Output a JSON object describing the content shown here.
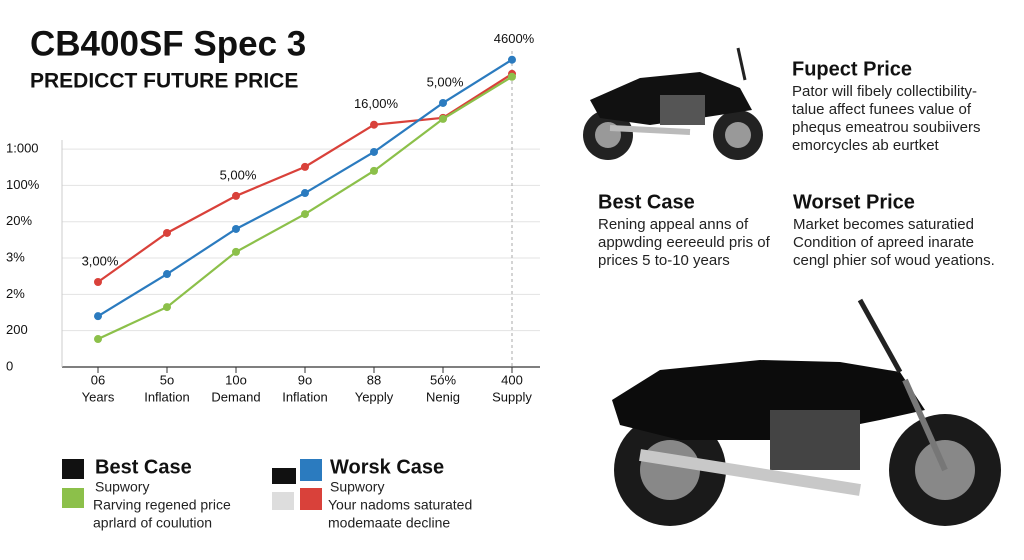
{
  "chart_data": {
    "type": "line",
    "title": "CB400SF Spec 3",
    "subtitle": "PREDICCT FUTURE PRICE",
    "categories": [
      [
        "06",
        "Years"
      ],
      [
        "5o",
        "Inflation"
      ],
      [
        "10o",
        "Demand"
      ],
      [
        "9o",
        "Inflation"
      ],
      [
        "88",
        "Yepply"
      ],
      [
        "5ó%",
        "Nenig"
      ],
      [
        "400",
        "Supply"
      ]
    ],
    "series": [
      {
        "color": "#d9413a",
        "values": [
          2.34,
          3.69,
          4.71,
          5.51,
          6.67,
          6.86,
          8.07
        ]
      },
      {
        "color": "#2b7bbf",
        "values": [
          1.4,
          2.56,
          3.8,
          4.79,
          5.92,
          7.27,
          8.46
        ]
      },
      {
        "color": "#8cc04a",
        "values": [
          0.77,
          1.65,
          3.17,
          4.21,
          5.4,
          6.83,
          7.99
        ]
      }
    ],
    "annotations": [
      "3,00%",
      "5,00%",
      "16,00%",
      "5,00%",
      "4600%"
    ],
    "ylim": [
      0,
      8.7
    ],
    "yticks": [
      0,
      {
        "value": 1,
        "label": "200"
      },
      {
        "value": 2,
        "label": "2%"
      },
      {
        "value": 3,
        "label": "3%"
      },
      {
        "value": 4,
        "label": "20%"
      },
      {
        "value": 5,
        "label": "100%"
      },
      {
        "value": 6,
        "label": "1:000"
      }
    ],
    "grid": true
  },
  "legend": [
    {
      "title": "Best Case",
      "lines": [
        "Supwory",
        "Rarving regened price",
        "aprlard of coulution"
      ]
    },
    {
      "title": "Worsk Case",
      "lines": [
        "Supwory",
        "Your nadoms saturated",
        "modemaate decline"
      ]
    }
  ],
  "panels": [
    {
      "title": "Fupect Price",
      "lines": [
        "Pator will fibely collectibility-",
        "talue affect funees value of",
        "phequs emeatrou soubiivers",
        "emorcycles ab eurtket"
      ]
    },
    {
      "title": "Best Case",
      "lines": [
        "Rening appeal anns of",
        "appwding eereeuld pris of",
        "prices 5 to-10 years"
      ]
    },
    {
      "title": "Worset Price",
      "lines": [
        "Market becomes saturatied",
        "Condition of apreed inarate",
        "cengl phier sof woud yeations."
      ]
    }
  ]
}
